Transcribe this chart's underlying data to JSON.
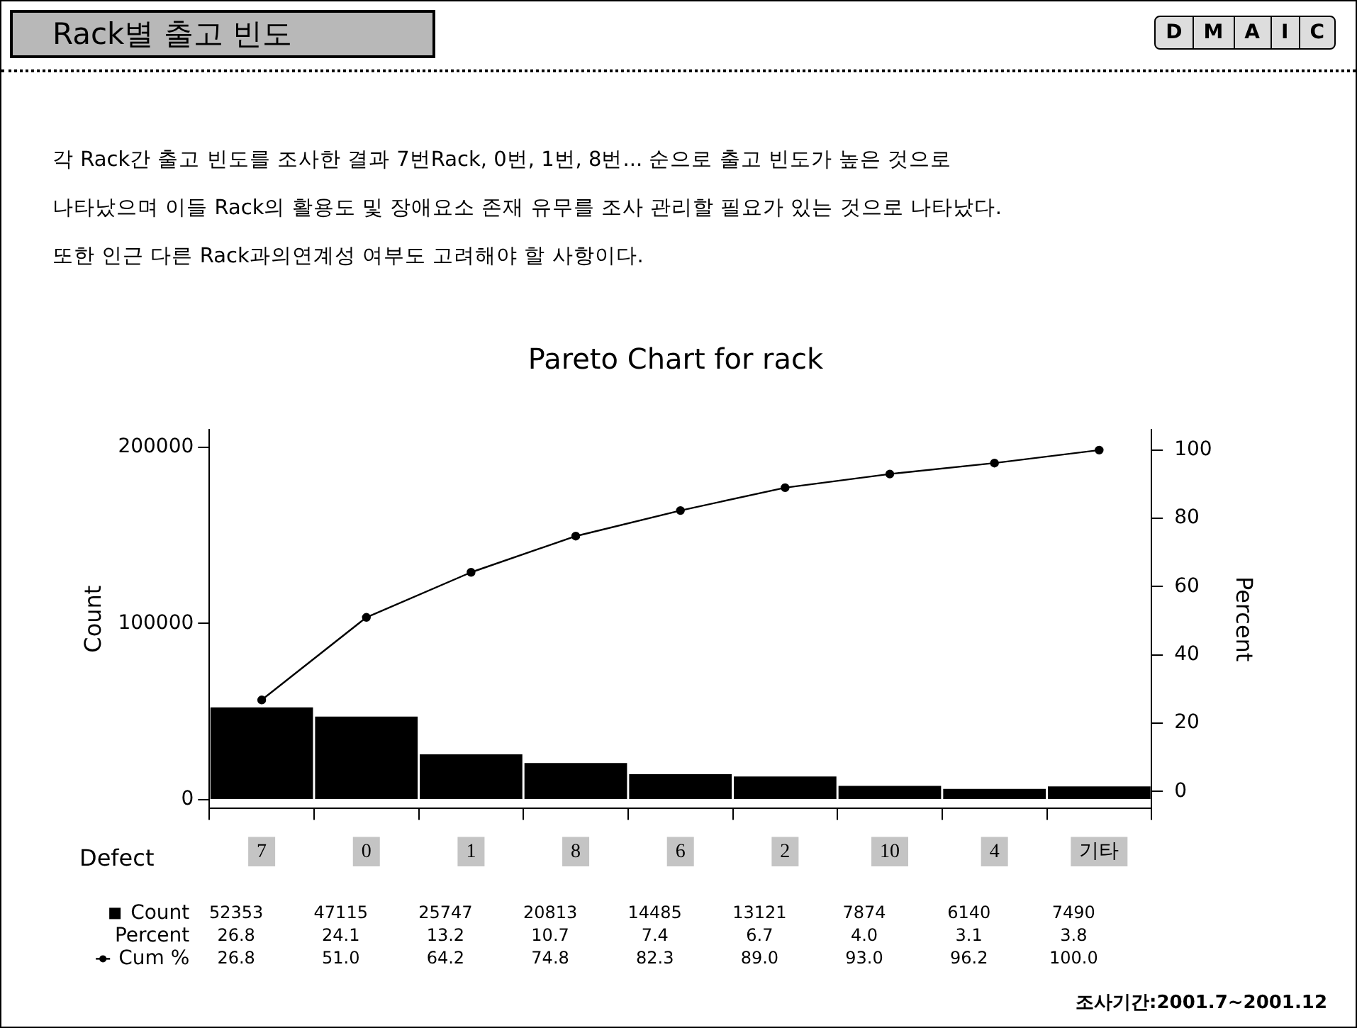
{
  "chart_data": {
    "type": "bar",
    "title": "Rack별 출고 빈도",
    "subtitle": "Pareto Chart for rack",
    "xlabel": "Defect",
    "ylabel": "Count",
    "y2label": "Percent",
    "categories": [
      "7",
      "0",
      "1",
      "8",
      "6",
      "2",
      "10",
      "4",
      "기타"
    ],
    "series": [
      {
        "name": "Count",
        "color": "#000000",
        "values": [
          52353,
          47115,
          25747,
          20813,
          14485,
          13121,
          7874,
          6140,
          7490
        ],
        "value_labels": [
          "52353",
          "47115",
          "25747",
          "20813",
          "14485",
          "13121",
          "7874",
          "6140",
          "7490"
        ]
      },
      {
        "name": "Cum %",
        "type": "line",
        "axis": "y2",
        "color": "#000000",
        "values": [
          26.8,
          51.0,
          64.2,
          74.8,
          82.3,
          89.0,
          93.0,
          96.2,
          100.0
        ],
        "value_labels": [
          "26.8",
          "51.0",
          "64.2",
          "74.8",
          "82.3",
          "89.0",
          "93.0",
          "96.2",
          "100.0"
        ]
      }
    ],
    "ylim": [
      -5000,
      210000
    ],
    "yticks": [
      0,
      100000,
      200000
    ],
    "y2lim": [
      -5,
      106
    ],
    "y2ticks": [
      0,
      20,
      40,
      60,
      80,
      100
    ],
    "marker": "circle",
    "legend": "bottom left",
    "line_style": "solid",
    "annotations": [
      "D",
      "M",
      "A",
      "I",
      "C",
      "각 Rack간 출고 빈도를 조사한 결과 7번Rack, 0번, 1번, 8번... 순으로 출고 빈도가 높은 것으로",
      "나타났으며 이들 Rack의 활용도 및 장애요소 존재 유무를 조사 관리할 필요가 있는 것으로 나타났다.",
      "또한 인근 다른 Rack과의연계성 여부도 고려해야 할 사항이다.",
      "Percent",
      "26.8",
      "24.1",
      "13.2",
      "10.7",
      "7.4",
      "6.7",
      "4.0",
      "3.1",
      "3.8",
      "조사기간:2001.7~2001.12"
    ]
  }
}
